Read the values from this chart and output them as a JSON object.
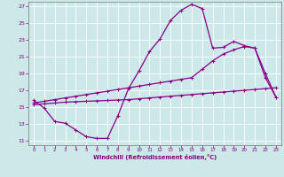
{
  "xlabel": "Windchill (Refroidissement éolien,°C)",
  "bg_color": "#cce8e8",
  "grid_color": "#b0d0d0",
  "line_color": "#880088",
  "xlim": [
    -0.5,
    23.5
  ],
  "ylim": [
    10.5,
    27.5
  ],
  "yticks": [
    11,
    13,
    15,
    17,
    19,
    21,
    23,
    25,
    27
  ],
  "xticks": [
    0,
    1,
    2,
    3,
    4,
    5,
    6,
    7,
    8,
    9,
    10,
    11,
    12,
    13,
    14,
    15,
    16,
    17,
    18,
    19,
    20,
    21,
    22,
    23
  ],
  "line1_x": [
    0,
    1,
    2,
    3,
    4,
    5,
    6,
    7,
    8,
    9,
    10,
    11,
    12,
    13,
    14,
    15,
    16,
    17,
    18,
    19,
    20,
    21,
    22,
    23
  ],
  "line1_y": [
    15.8,
    14.9,
    13.3,
    13.1,
    12.3,
    11.5,
    11.3,
    11.3,
    14.0,
    17.2,
    19.3,
    21.6,
    23.1,
    25.3,
    26.5,
    27.2,
    26.7,
    22.0,
    22.1,
    22.8,
    22.3,
    22.0,
    18.5,
    16.2
  ],
  "line2_x": [
    0,
    1,
    2,
    3,
    4,
    5,
    6,
    7,
    8,
    9,
    10,
    11,
    12,
    13,
    14,
    15,
    16,
    17,
    18,
    19,
    20,
    21,
    22,
    23
  ],
  "line2_y": [
    15.3,
    15.4,
    15.5,
    15.6,
    15.65,
    15.7,
    15.75,
    15.8,
    15.85,
    15.9,
    16.0,
    16.1,
    16.2,
    16.3,
    16.4,
    16.5,
    16.6,
    16.7,
    16.8,
    16.9,
    17.0,
    17.1,
    17.2,
    17.3
  ],
  "line3_x": [
    0,
    1,
    2,
    3,
    4,
    5,
    6,
    7,
    8,
    9,
    10,
    11,
    12,
    13,
    14,
    15,
    16,
    17,
    18,
    19,
    20,
    21,
    22,
    23
  ],
  "line3_y": [
    15.5,
    15.7,
    15.9,
    16.1,
    16.3,
    16.5,
    16.7,
    16.9,
    17.1,
    17.3,
    17.5,
    17.7,
    17.9,
    18.1,
    18.3,
    18.5,
    19.5,
    20.5,
    21.3,
    21.8,
    22.2,
    22.0,
    19.0,
    16.2
  ]
}
